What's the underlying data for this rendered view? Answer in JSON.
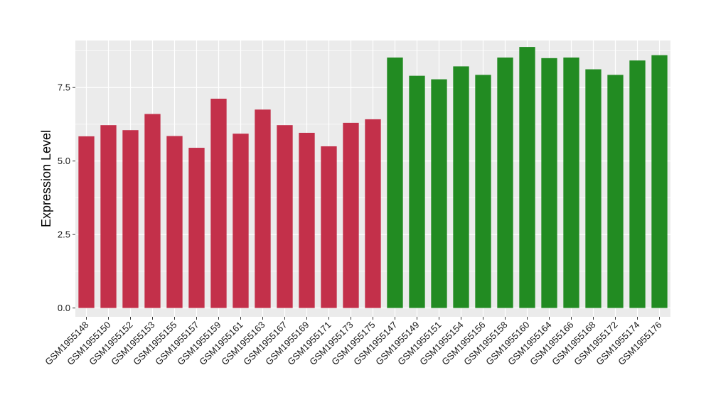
{
  "chart_data": {
    "type": "bar",
    "title": "",
    "xlabel": "",
    "ylabel": "Expression Level",
    "ylim": [
      -0.3,
      9.1
    ],
    "yticks": [
      0.0,
      2.5,
      5.0,
      7.5
    ],
    "ytick_labels": [
      "0.0",
      "2.5",
      "5.0",
      "7.5"
    ],
    "grid": true,
    "legend": "none",
    "colors": {
      "group_a": "#c3304a",
      "group_b": "#228b22",
      "panel": "#ebebeb",
      "gridline": "#ffffff"
    },
    "categories": [
      "GSM1955148",
      "GSM1955150",
      "GSM1955152",
      "GSM1955153",
      "GSM1955155",
      "GSM1955157",
      "GSM1955159",
      "GSM1955161",
      "GSM1955163",
      "GSM1955167",
      "GSM1955169",
      "GSM1955171",
      "GSM1955173",
      "GSM1955175",
      "GSM1955147",
      "GSM1955149",
      "GSM1955151",
      "GSM1955154",
      "GSM1955156",
      "GSM1955158",
      "GSM1955160",
      "GSM1955164",
      "GSM1955166",
      "GSM1955168",
      "GSM1955172",
      "GSM1955174",
      "GSM1955176"
    ],
    "values": [
      5.84,
      6.22,
      6.05,
      6.6,
      5.85,
      5.45,
      7.12,
      5.93,
      6.75,
      6.22,
      5.96,
      5.5,
      6.3,
      6.42,
      8.52,
      7.9,
      7.78,
      8.22,
      7.93,
      8.52,
      8.88,
      8.5,
      8.52,
      8.12,
      7.93,
      8.42,
      8.6
    ],
    "bar_group": [
      "group_a",
      "group_a",
      "group_a",
      "group_a",
      "group_a",
      "group_a",
      "group_a",
      "group_a",
      "group_a",
      "group_a",
      "group_a",
      "group_a",
      "group_a",
      "group_a",
      "group_b",
      "group_b",
      "group_b",
      "group_b",
      "group_b",
      "group_b",
      "group_b",
      "group_b",
      "group_b",
      "group_b",
      "group_b",
      "group_b",
      "group_b"
    ]
  }
}
